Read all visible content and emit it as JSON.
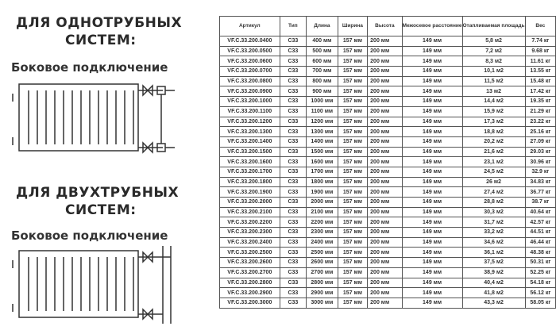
{
  "left": {
    "single": {
      "title1": "ДЛЯ ОДНОТРУБНЫХ",
      "title2": "СИСТЕМ:",
      "subtitle": "Боковое подключение"
    },
    "double": {
      "title1": "ДЛЯ ДВУХТРУБНЫХ",
      "title2": "СИСТЕМ:",
      "subtitle": "Боковое подключение"
    }
  },
  "table": {
    "headers": [
      "Артикул",
      "Тип",
      "Длина",
      "Ширина",
      "Высота",
      "Межосевое расстояние",
      "Отапливаемая площадь",
      "Вес"
    ],
    "rows": [
      [
        "VF.C.33.200.0400",
        "C33",
        "400 мм",
        "157 мм",
        "200 мм",
        "149 мм",
        "5,8 м2",
        "7.74 кг"
      ],
      [
        "VF.C.33.200.0500",
        "C33",
        "500 мм",
        "157 мм",
        "200 мм",
        "149 мм",
        "7,2 м2",
        "9.68 кг"
      ],
      [
        "VF.C.33.200.0600",
        "C33",
        "600 мм",
        "157 мм",
        "200 мм",
        "149 мм",
        "8,3 м2",
        "11.61 кг"
      ],
      [
        "VF.C.33.200.0700",
        "C33",
        "700 мм",
        "157 мм",
        "200 мм",
        "149 мм",
        "10,1 м2",
        "13.55 кг"
      ],
      [
        "VF.C.33.200.0800",
        "C33",
        "800 мм",
        "157 мм",
        "200 мм",
        "149 мм",
        "11,5 м2",
        "15.48 кг"
      ],
      [
        "VF.C.33.200.0900",
        "C33",
        "900 мм",
        "157 мм",
        "200 мм",
        "149 мм",
        "13 м2",
        "17.42 кг"
      ],
      [
        "VF.C.33.200.1000",
        "C33",
        "1000 мм",
        "157 мм",
        "200 мм",
        "149 мм",
        "14,4 м2",
        "19.35 кг"
      ],
      [
        "VF.C.33.200.1100",
        "C33",
        "1100 мм",
        "157 мм",
        "200 мм",
        "149 мм",
        "15,9 м2",
        "21.29 кг"
      ],
      [
        "VF.C.33.200.1200",
        "C33",
        "1200 мм",
        "157 мм",
        "200 мм",
        "149 мм",
        "17,3 м2",
        "23.22 кг"
      ],
      [
        "VF.C.33.200.1300",
        "C33",
        "1300 мм",
        "157 мм",
        "200 мм",
        "149 мм",
        "18,8 м2",
        "25.16 кг"
      ],
      [
        "VF.C.33.200.1400",
        "C33",
        "1400 мм",
        "157 мм",
        "200 мм",
        "149 мм",
        "20,2 м2",
        "27.09 кг"
      ],
      [
        "VF.C.33.200.1500",
        "C33",
        "1500 мм",
        "157 мм",
        "200 мм",
        "149 мм",
        "21,6 м2",
        "29.03 кг"
      ],
      [
        "VF.C.33.200.1600",
        "C33",
        "1600 мм",
        "157 мм",
        "200 мм",
        "149 мм",
        "23,1 м2",
        "30.96 кг"
      ],
      [
        "VF.C.33.200.1700",
        "C33",
        "1700 мм",
        "157 мм",
        "200 мм",
        "149 мм",
        "24,5 м2",
        "32.9 кг"
      ],
      [
        "VF.C.33.200.1800",
        "C33",
        "1800 мм",
        "157 мм",
        "200 мм",
        "149 мм",
        "26 м2",
        "34.83 кг"
      ],
      [
        "VF.C.33.200.1900",
        "C33",
        "1900 мм",
        "157 мм",
        "200 мм",
        "149 мм",
        "27,4 м2",
        "36.77 кг"
      ],
      [
        "VF.C.33.200.2000",
        "C33",
        "2000 мм",
        "157 мм",
        "200 мм",
        "149 мм",
        "28,8 м2",
        "38.7 кг"
      ],
      [
        "VF.C.33.200.2100",
        "C33",
        "2100 мм",
        "157 мм",
        "200 мм",
        "149 мм",
        "30,3 м2",
        "40.64 кг"
      ],
      [
        "VF.C.33.200.2200",
        "C33",
        "2200 мм",
        "157 мм",
        "200 мм",
        "149 мм",
        "31,7 м2",
        "42.57 кг"
      ],
      [
        "VF.C.33.200.2300",
        "C33",
        "2300 мм",
        "157 мм",
        "200 мм",
        "149 мм",
        "33,2 м2",
        "44.51 кг"
      ],
      [
        "VF.C.33.200.2400",
        "C33",
        "2400 мм",
        "157 мм",
        "200 мм",
        "149 мм",
        "34,6 м2",
        "46.44 кг"
      ],
      [
        "VF.C.33.200.2500",
        "C33",
        "2500 мм",
        "157 мм",
        "200 мм",
        "149 мм",
        "36,1 м2",
        "48.38 кг"
      ],
      [
        "VF.C.33.200.2600",
        "C33",
        "2600 мм",
        "157 мм",
        "200 мм",
        "149 мм",
        "37,5 м2",
        "50.31 кг"
      ],
      [
        "VF.C.33.200.2700",
        "C33",
        "2700 мм",
        "157 мм",
        "200 мм",
        "149 мм",
        "38,9 м2",
        "52.25 кг"
      ],
      [
        "VF.C.33.200.2800",
        "C33",
        "2800 мм",
        "157 мм",
        "200 мм",
        "149 мм",
        "40,4 м2",
        "54.18 кг"
      ],
      [
        "VF.C.33.200.2900",
        "C33",
        "2900 мм",
        "157 мм",
        "200 мм",
        "149 мм",
        "41,8 м2",
        "56.12 кг"
      ],
      [
        "VF.C.33.200.3000",
        "C33",
        "3000 мм",
        "157 мм",
        "200 мм",
        "149 мм",
        "43,3 м2",
        "58.05 кг"
      ]
    ]
  }
}
